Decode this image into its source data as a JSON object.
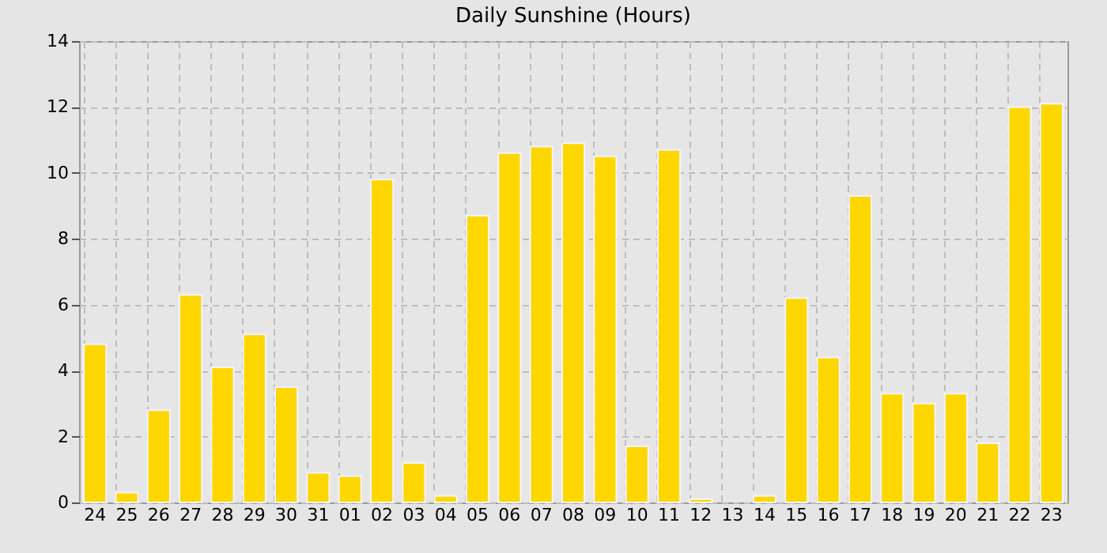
{
  "chart_data": {
    "type": "bar",
    "title": "Daily Sunshine (Hours)",
    "categories": [
      "24",
      "25",
      "26",
      "27",
      "28",
      "29",
      "30",
      "31",
      "01",
      "02",
      "03",
      "04",
      "05",
      "06",
      "07",
      "08",
      "09",
      "10",
      "11",
      "12",
      "13",
      "14",
      "15",
      "16",
      "17",
      "18",
      "19",
      "20",
      "21",
      "22",
      "23"
    ],
    "values": [
      4.8,
      0.3,
      2.8,
      6.3,
      4.1,
      5.1,
      3.5,
      0.9,
      0.8,
      9.8,
      1.2,
      0.2,
      8.7,
      10.6,
      10.8,
      10.9,
      10.5,
      1.7,
      10.7,
      0.1,
      0,
      0.2,
      6.2,
      4.4,
      9.3,
      3.3,
      3.0,
      3.3,
      1.8,
      12.0,
      12.1
    ],
    "color": "#ffd700",
    "ylim": [
      0,
      14
    ],
    "yticks": [
      0,
      2,
      4,
      6,
      8,
      10,
      12,
      14
    ],
    "grid": true
  }
}
